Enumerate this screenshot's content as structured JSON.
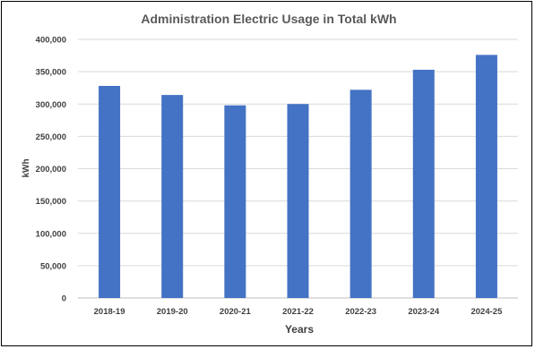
{
  "chart_data": {
    "type": "bar",
    "title": "Administration Electric Usage in Total kWh",
    "xlabel": "Years",
    "ylabel": "kWh",
    "categories": [
      "2018-19",
      "2019-20",
      "2020-21",
      "2021-22",
      "2022-23",
      "2023-24",
      "2024-25"
    ],
    "values": [
      328000,
      314000,
      298000,
      300000,
      322000,
      353000,
      376000
    ],
    "ylim": [
      0,
      400000
    ],
    "yticks": [
      0,
      50000,
      100000,
      150000,
      200000,
      250000,
      300000,
      350000,
      400000
    ],
    "ytick_labels": [
      "0",
      "50,000",
      "100,000",
      "150,000",
      "200,000",
      "250,000",
      "300,000",
      "350,000",
      "400,000"
    ],
    "grid": true,
    "bar_color": "#4472c4"
  }
}
